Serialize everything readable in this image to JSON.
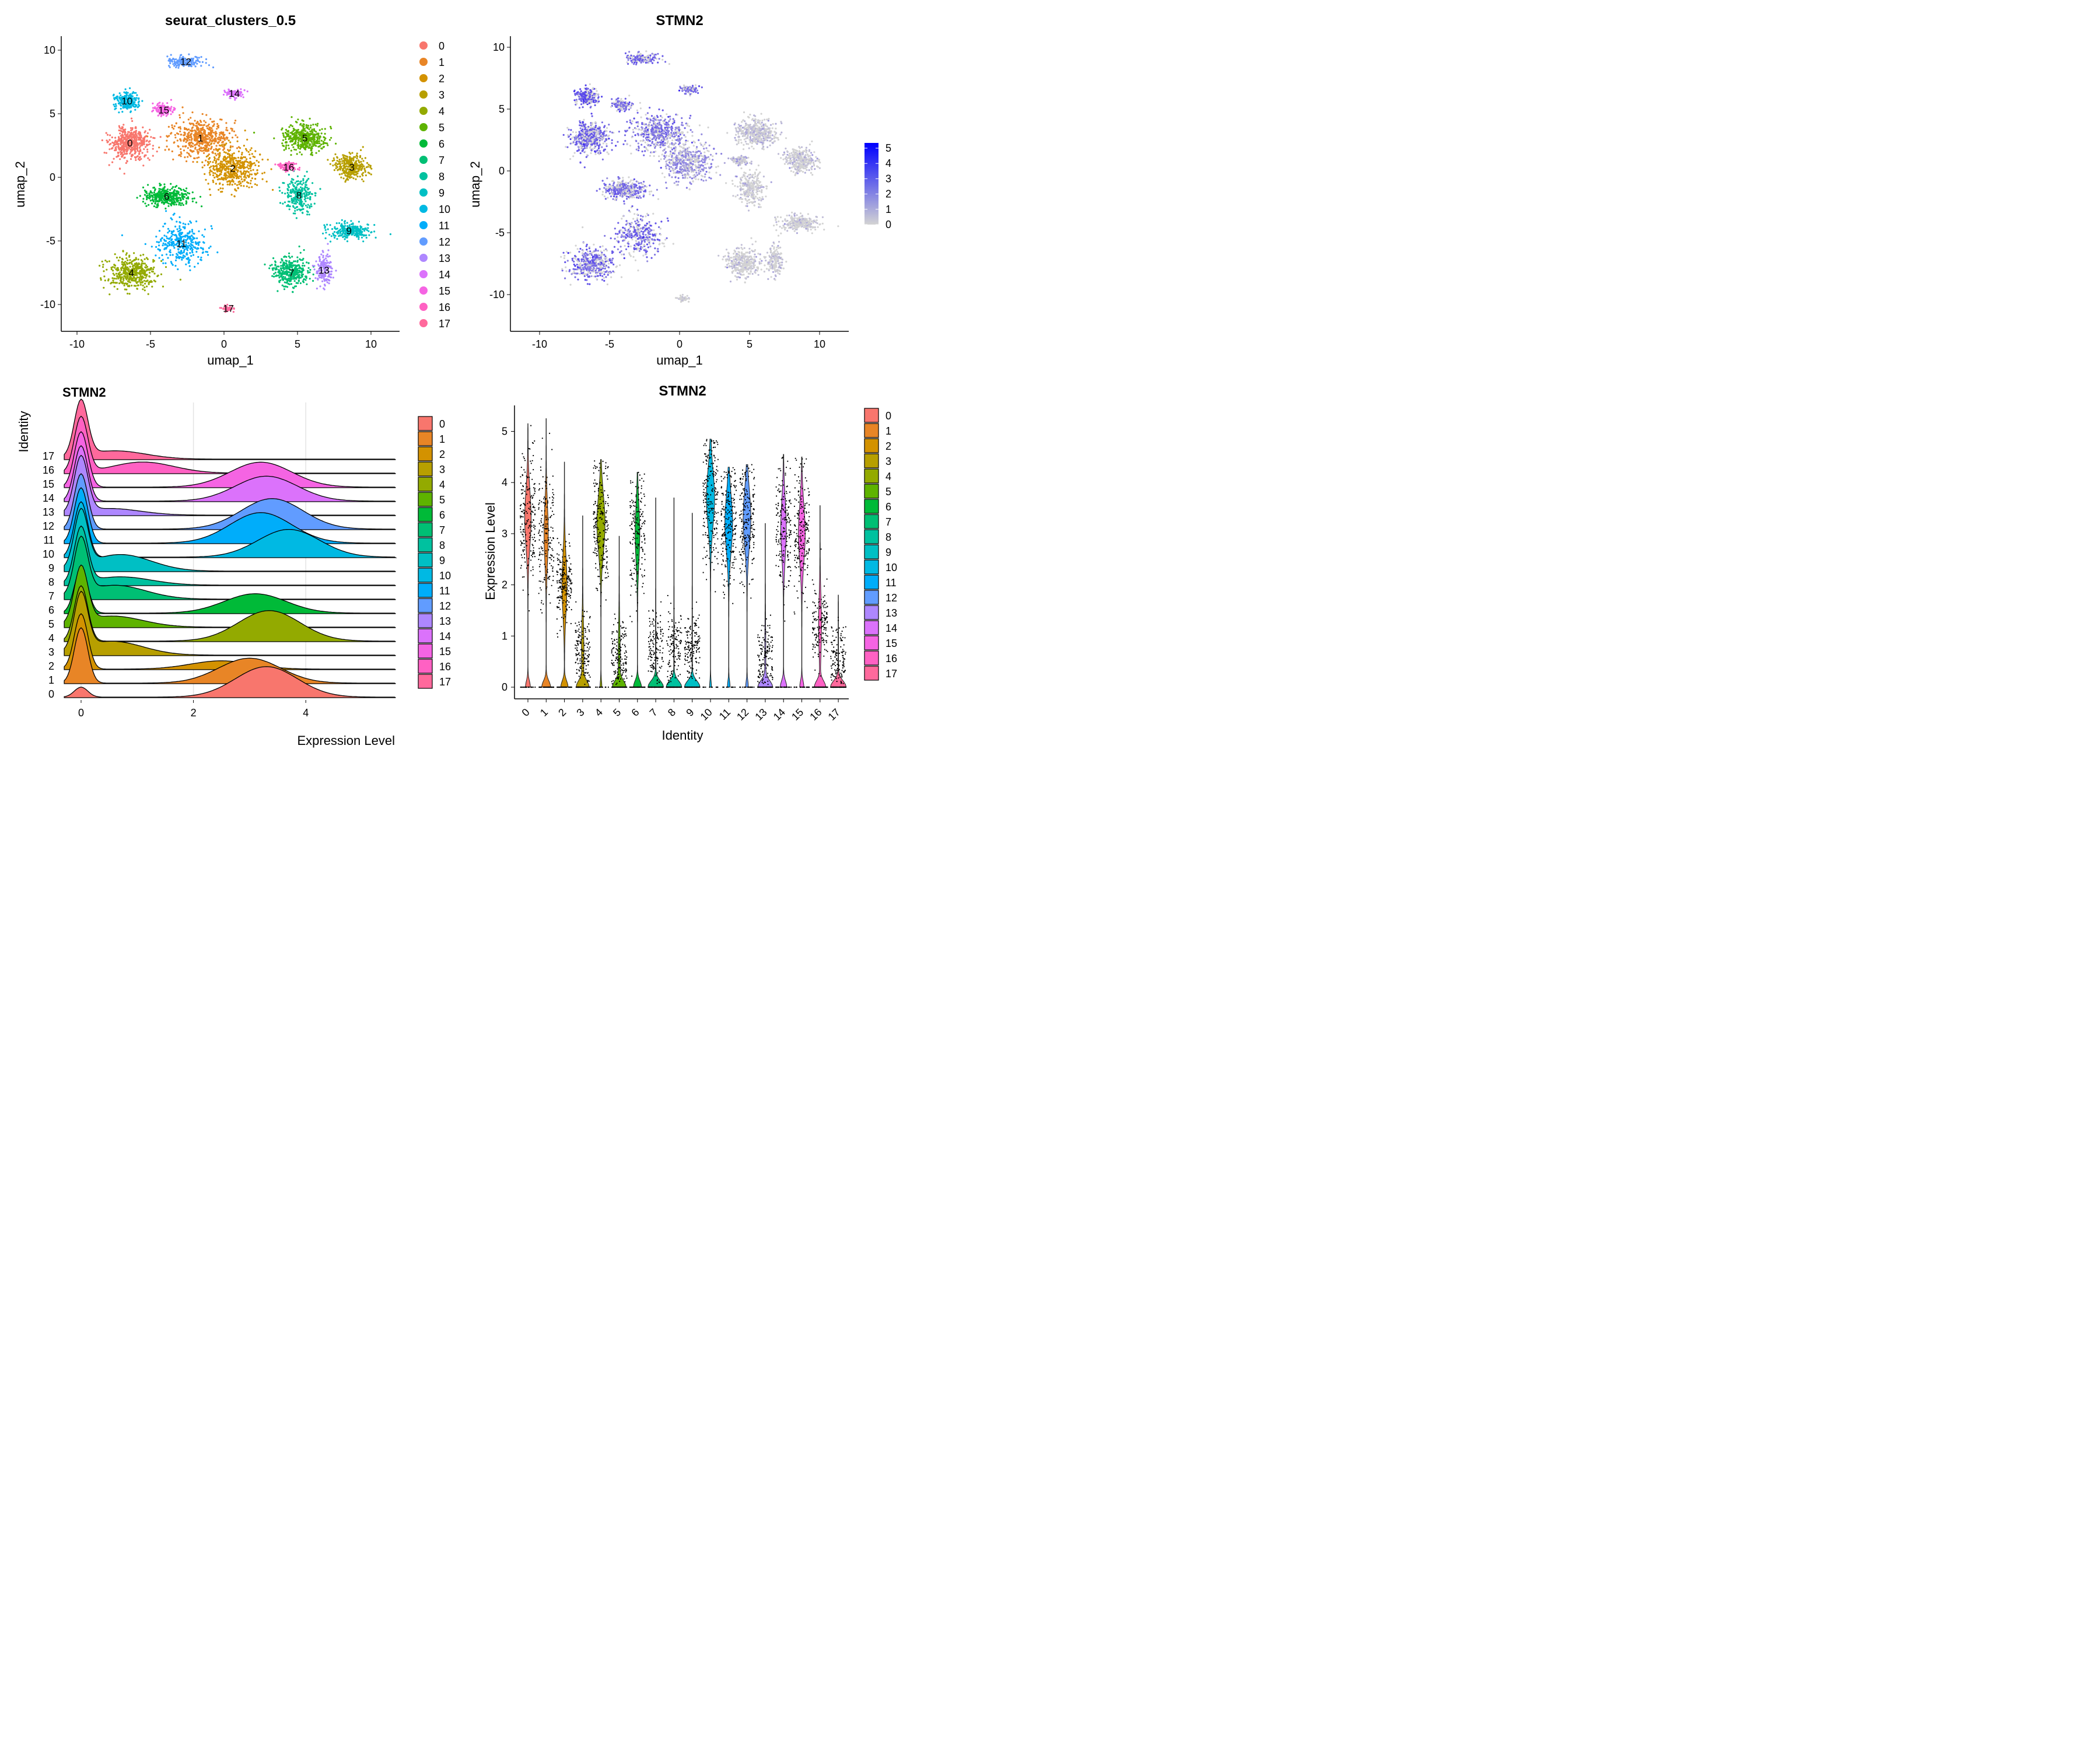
{
  "clusters": [
    "0",
    "1",
    "2",
    "3",
    "4",
    "5",
    "6",
    "7",
    "8",
    "9",
    "10",
    "11",
    "12",
    "13",
    "14",
    "15",
    "16",
    "17"
  ],
  "palette": [
    "#F8766D",
    "#E88526",
    "#D39200",
    "#B79F00",
    "#93AA00",
    "#5EB300",
    "#00BA38",
    "#00BF74",
    "#00C19F",
    "#00BFC4",
    "#00B9E3",
    "#00ADFA",
    "#619CFF",
    "#AE87FF",
    "#DB72FB",
    "#F564E3",
    "#FF61C3",
    "#FF699C"
  ],
  "umap_clusters": {
    "title": "seurat_clusters_0.5",
    "xlabel": "umap_1",
    "ylabel": "umap_2",
    "xticks": [
      -10,
      -5,
      0,
      5,
      10
    ],
    "yticks": [
      -10,
      -5,
      0,
      5,
      10
    ],
    "xlim": [
      -11,
      12
    ],
    "ylim": [
      -12,
      11
    ],
    "centroids": [
      {
        "id": "0",
        "x": -6.4,
        "y": 2.7
      },
      {
        "id": "1",
        "x": -1.6,
        "y": 3.1
      },
      {
        "id": "2",
        "x": 0.6,
        "y": 0.7
      },
      {
        "id": "3",
        "x": 8.7,
        "y": 0.8
      },
      {
        "id": "4",
        "x": -6.3,
        "y": -7.5
      },
      {
        "id": "5",
        "x": 5.5,
        "y": 3.1
      },
      {
        "id": "6",
        "x": -3.9,
        "y": -1.5
      },
      {
        "id": "7",
        "x": 4.6,
        "y": -7.5
      },
      {
        "id": "8",
        "x": 5.1,
        "y": -1.4
      },
      {
        "id": "9",
        "x": 8.5,
        "y": -4.2
      },
      {
        "id": "10",
        "x": -6.6,
        "y": 6.0
      },
      {
        "id": "11",
        "x": -2.9,
        "y": -5.2
      },
      {
        "id": "12",
        "x": -2.6,
        "y": 9.1
      },
      {
        "id": "13",
        "x": 6.8,
        "y": -7.3
      },
      {
        "id": "14",
        "x": 0.7,
        "y": 6.6
      },
      {
        "id": "15",
        "x": -4.1,
        "y": 5.3
      },
      {
        "id": "16",
        "x": 4.4,
        "y": 0.8
      },
      {
        "id": "17",
        "x": 0.3,
        "y": -10.3
      }
    ]
  },
  "umap_feature": {
    "title": "STMN2",
    "xlabel": "umap_1",
    "ylabel": "umap_2",
    "xticks": [
      -10,
      -5,
      0,
      5,
      10
    ],
    "yticks": [
      -10,
      -5,
      0,
      5,
      10
    ],
    "colorbar_ticks": [
      5,
      4,
      3,
      2,
      1,
      0
    ],
    "color_low": "#D3D3D3",
    "color_high": "#0000FF"
  },
  "ridge": {
    "title": "STMN2",
    "xlabel": "Expression Level",
    "ylabel": "Identity",
    "xticks": [
      0,
      2,
      4
    ]
  },
  "violin": {
    "title": "STMN2",
    "xlabel": "Identity",
    "ylabel": "Expression Level",
    "yticks": [
      0,
      1,
      2,
      3,
      4,
      5
    ]
  },
  "chart_data": [
    {
      "type": "scatter",
      "title": "seurat_clusters_0.5",
      "xlabel": "umap_1",
      "ylabel": "umap_2",
      "xlim": [
        -11,
        12
      ],
      "ylim": [
        -12,
        11
      ],
      "legend": "right",
      "series": [
        {
          "name": "0",
          "x": -6.4,
          "y": 2.7
        },
        {
          "name": "1",
          "x": -1.6,
          "y": 3.1
        },
        {
          "name": "2",
          "x": 0.6,
          "y": 0.7
        },
        {
          "name": "3",
          "x": 8.7,
          "y": 0.8
        },
        {
          "name": "4",
          "x": -6.3,
          "y": -7.5
        },
        {
          "name": "5",
          "x": 5.5,
          "y": 3.1
        },
        {
          "name": "6",
          "x": -3.9,
          "y": -1.5
        },
        {
          "name": "7",
          "x": 4.6,
          "y": -7.5
        },
        {
          "name": "8",
          "x": 5.1,
          "y": -1.4
        },
        {
          "name": "9",
          "x": 8.5,
          "y": -4.2
        },
        {
          "name": "10",
          "x": -6.6,
          "y": 6.0
        },
        {
          "name": "11",
          "x": -2.9,
          "y": -5.2
        },
        {
          "name": "12",
          "x": -2.6,
          "y": 9.1
        },
        {
          "name": "13",
          "x": 6.8,
          "y": -7.3
        },
        {
          "name": "14",
          "x": 0.7,
          "y": 6.6
        },
        {
          "name": "15",
          "x": -4.1,
          "y": 5.3
        },
        {
          "name": "16",
          "x": 4.4,
          "y": 0.8
        },
        {
          "name": "17",
          "x": 0.3,
          "y": -10.3
        }
      ]
    },
    {
      "type": "scatter",
      "title": "STMN2",
      "xlabel": "umap_1",
      "ylabel": "umap_2",
      "colorbar_range": [
        0,
        5
      ],
      "legend": "right"
    },
    {
      "type": "area",
      "title": "STMN2",
      "xlabel": "Expression Level",
      "ylabel": "Identity",
      "categories": [
        "0",
        "1",
        "2",
        "3",
        "4",
        "5",
        "6",
        "7",
        "8",
        "9",
        "10",
        "11",
        "12",
        "13",
        "14",
        "15",
        "16",
        "17"
      ],
      "zero_peak": [
        0.18,
        1.0,
        1.0,
        1.0,
        1.0,
        1.0,
        0.8,
        1.0,
        1.0,
        1.0,
        1.0,
        1.0,
        1.0,
        1.0,
        1.0,
        1.0,
        1.0,
        1.0
      ],
      "high_mode_center": [
        3.3,
        3.0,
        2.5,
        0.55,
        3.35,
        0.55,
        3.1,
        0.6,
        0.7,
        0.7,
        3.7,
        3.2,
        3.4,
        0.5,
        3.3,
        3.2,
        1.1,
        0.6
      ],
      "high_mode_height": [
        0.55,
        0.45,
        0.15,
        0.25,
        0.55,
        0.2,
        0.35,
        0.25,
        0.15,
        0.3,
        0.5,
        0.55,
        0.55,
        0.12,
        0.45,
        0.45,
        0.2,
        0.15
      ]
    },
    {
      "type": "bar",
      "title": "STMN2",
      "xlabel": "Identity",
      "ylabel": "Expression Level",
      "ylim": [
        0,
        5.5
      ],
      "categories": [
        "0",
        "1",
        "2",
        "3",
        "4",
        "5",
        "6",
        "7",
        "8",
        "9",
        "10",
        "11",
        "12",
        "13",
        "14",
        "15",
        "16",
        "17"
      ],
      "median_expressing": [
        3.3,
        3.0,
        2.0,
        0.7,
        3.2,
        0.6,
        3.0,
        0.75,
        0.8,
        0.8,
        3.7,
        3.2,
        3.3,
        0.6,
        3.1,
        3.0,
        1.2,
        0.5
      ],
      "max": [
        5.15,
        5.25,
        4.4,
        3.35,
        4.45,
        2.95,
        4.2,
        3.7,
        3.7,
        3.4,
        4.85,
        4.3,
        4.35,
        3.2,
        4.55,
        4.5,
        3.55,
        1.85
      ],
      "zero_fraction": [
        0.3,
        0.55,
        0.45,
        0.75,
        0.1,
        0.8,
        0.5,
        0.97,
        0.97,
        0.97,
        0.1,
        0.15,
        0.15,
        0.9,
        0.4,
        0.25,
        0.7,
        0.97
      ]
    }
  ]
}
